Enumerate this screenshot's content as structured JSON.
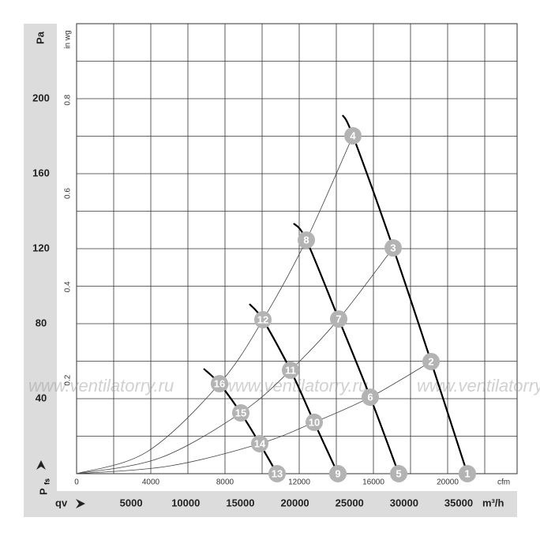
{
  "chart_data": {
    "type": "fan-curve",
    "y_label": "Pa",
    "y2_label": "in wg",
    "x_label": "cfm",
    "x2_label": "m³/h",
    "x2_prefix": "qv",
    "p_label": "P",
    "p_subscript": "fs",
    "watermark": "www.ventilatorry.ru",
    "xlim": [
      0,
      23745
    ],
    "xticks": [
      0,
      4000,
      8000,
      12000,
      16000,
      20000
    ],
    "xgrid": [
      2000,
      4000,
      6000,
      8000,
      10000,
      12000,
      14000,
      16000,
      18000,
      20000,
      22000
    ],
    "ylim": [
      0,
      240
    ],
    "yticks": [
      40,
      80,
      120,
      160,
      200
    ],
    "ygrid": [
      20,
      40,
      60,
      80,
      100,
      120,
      140,
      160,
      180,
      200,
      220
    ],
    "y2lim": [
      0,
      0.9635
    ],
    "y2ticks": [
      0.2,
      0.4,
      0.6,
      0.8
    ],
    "x2lim": [
      0,
      40350
    ],
    "x2ticks": [
      5000,
      10000,
      15000,
      20000,
      25000,
      30000,
      35000
    ],
    "grid": true,
    "series": [
      {
        "color": "#000",
        "width": 2.2,
        "x": [
          14340,
          14894,
          17064,
          19106,
          21064
        ],
        "values": [
          191.2,
          180.2,
          120.4,
          59.8,
          0
        ]
      },
      {
        "color": "#000",
        "width": 2.2,
        "x": [
          11702,
          12383,
          14128,
          15830,
          17362
        ],
        "values": [
          133.5,
          124.6,
          82.5,
          40.8,
          0
        ]
      },
      {
        "color": "#000",
        "width": 2.2,
        "x": [
          9319,
          10043,
          11532,
          12809,
          14085
        ],
        "values": [
          90.5,
          82.1,
          55.2,
          27.4,
          0
        ]
      },
      {
        "color": "#000",
        "width": 2.2,
        "x": [
          6851,
          7702,
          8851,
          9872,
          10809
        ],
        "values": [
          56,
          48,
          32.4,
          16,
          0
        ]
      },
      {
        "color": "#444",
        "width": 0.8,
        "x": [
          0,
          3800,
          7702,
          10043,
          12383,
          14894
        ],
        "values": [
          0,
          11.7,
          48,
          82.1,
          124.6,
          180.2
        ]
      },
      {
        "color": "#444",
        "width": 0.8,
        "x": [
          0,
          4500,
          8851,
          11532,
          14128,
          17064
        ],
        "values": [
          0,
          8.4,
          32.4,
          55.2,
          82.5,
          120.4
        ]
      },
      {
        "color": "#444",
        "width": 0.8,
        "x": [
          0,
          5000,
          9872,
          12809,
          15830,
          19106
        ],
        "values": [
          0,
          4.1,
          16,
          27.4,
          40.8,
          59.8
        ]
      }
    ],
    "points": [
      {
        "label": "1",
        "x": 21064,
        "y": 0
      },
      {
        "label": "2",
        "x": 19106,
        "y": 59.8
      },
      {
        "label": "3",
        "x": 17064,
        "y": 120.4
      },
      {
        "label": "4",
        "x": 14894,
        "y": 180.2
      },
      {
        "label": "5",
        "x": 17362,
        "y": 0
      },
      {
        "label": "6",
        "x": 15830,
        "y": 40.8
      },
      {
        "label": "7",
        "x": 14128,
        "y": 82.5
      },
      {
        "label": "8",
        "x": 12383,
        "y": 124.6
      },
      {
        "label": "9",
        "x": 14085,
        "y": 0
      },
      {
        "label": "10",
        "x": 12809,
        "y": 27.4
      },
      {
        "label": "11",
        "x": 11532,
        "y": 55.2
      },
      {
        "label": "12",
        "x": 10043,
        "y": 82.1
      },
      {
        "label": "13",
        "x": 10809,
        "y": 0
      },
      {
        "label": "14",
        "x": 9872,
        "y": 16
      },
      {
        "label": "15",
        "x": 8851,
        "y": 32.4
      },
      {
        "label": "16",
        "x": 7702,
        "y": 48
      }
    ]
  }
}
